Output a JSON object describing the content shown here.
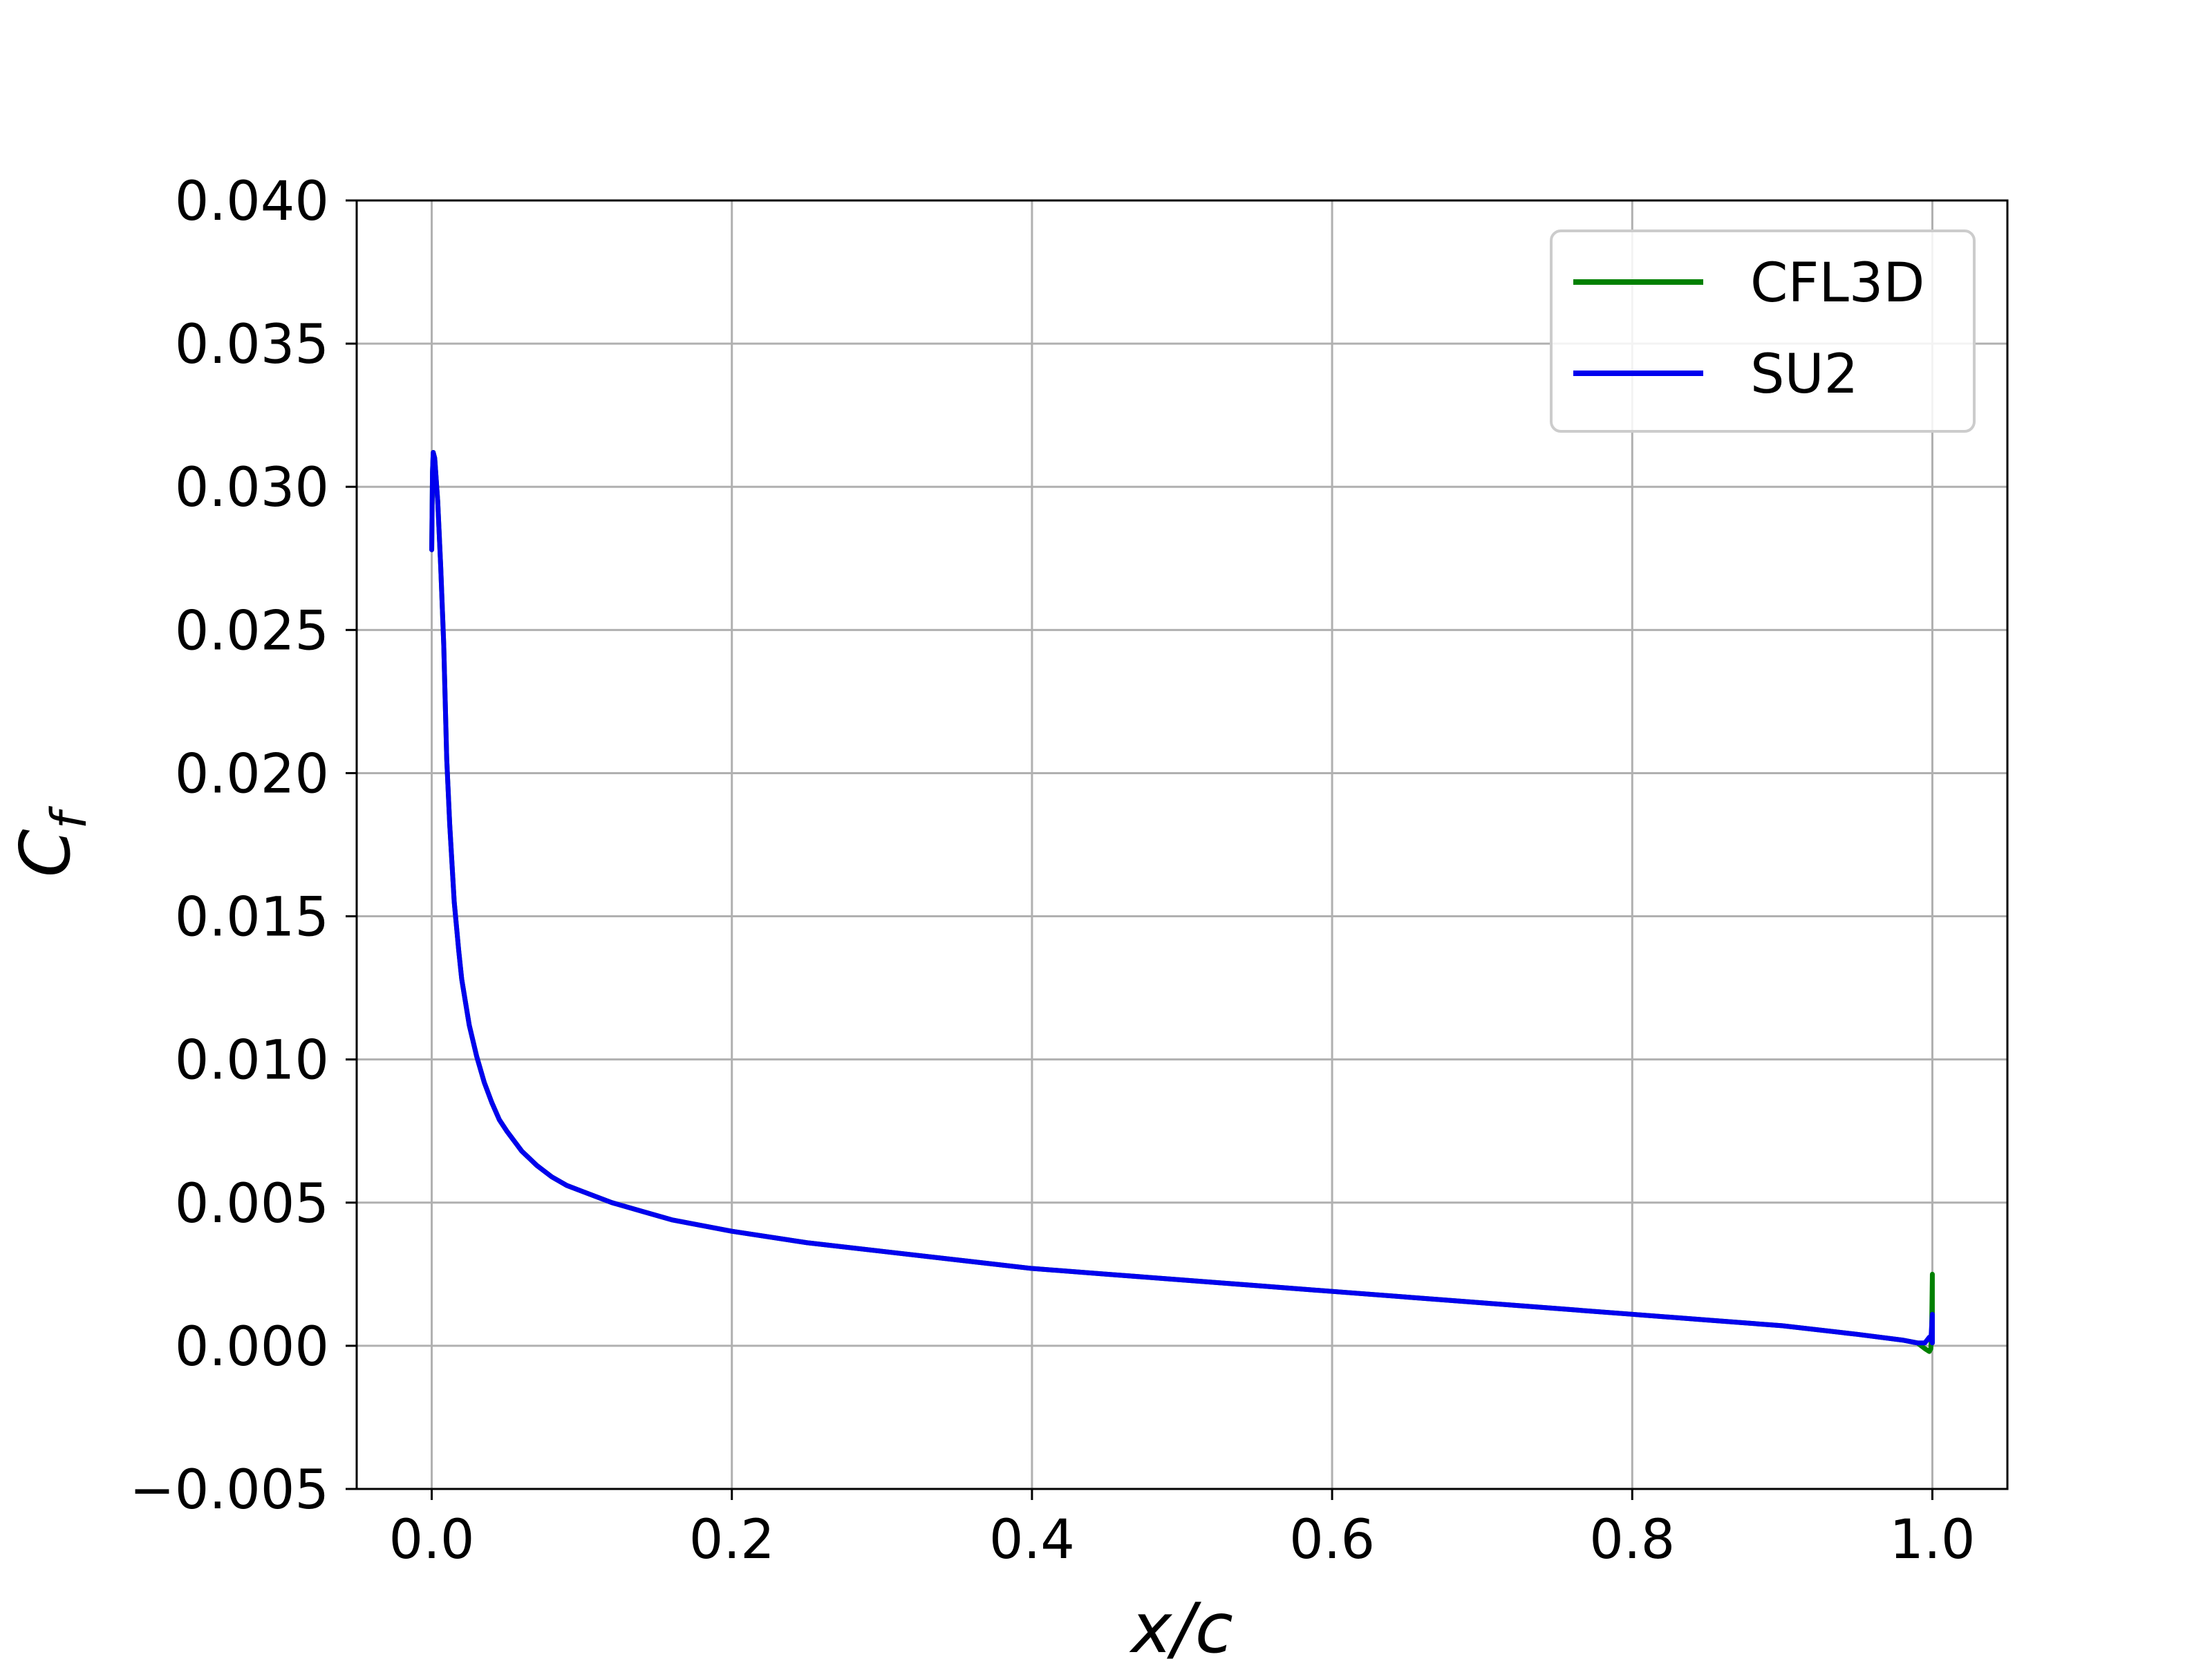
{
  "chart_data": {
    "type": "line",
    "title": "",
    "xlabel": "x/c",
    "ylabel": "C_f",
    "ylabel_main": "C",
    "ylabel_sub": "f",
    "xlim": [
      -0.05,
      1.05
    ],
    "ylim": [
      -0.005,
      0.04
    ],
    "xticks": [
      0.0,
      0.2,
      0.4,
      0.6,
      0.8,
      1.0
    ],
    "xtick_labels": [
      "0.0",
      "0.2",
      "0.4",
      "0.6",
      "0.8",
      "1.0"
    ],
    "yticks": [
      -0.005,
      0.0,
      0.005,
      0.01,
      0.015,
      0.02,
      0.025,
      0.03,
      0.035,
      0.04
    ],
    "ytick_labels": [
      "−0.005",
      "0.000",
      "0.005",
      "0.010",
      "0.015",
      "0.020",
      "0.025",
      "0.030",
      "0.035",
      "0.040"
    ],
    "grid": true,
    "legend_position": "top-right",
    "series": [
      {
        "name": "CFL3D",
        "color": "#008000",
        "x": [
          0.0,
          0.0005,
          0.001,
          0.002,
          0.004,
          0.006,
          0.008,
          0.01,
          0.012,
          0.015,
          0.018,
          0.02,
          0.025,
          0.03,
          0.035,
          0.04,
          0.045,
          0.05,
          0.06,
          0.07,
          0.08,
          0.09,
          0.1,
          0.12,
          0.14,
          0.16,
          0.18,
          0.2,
          0.25,
          0.3,
          0.35,
          0.4,
          0.45,
          0.5,
          0.55,
          0.6,
          0.65,
          0.7,
          0.75,
          0.8,
          0.85,
          0.9,
          0.95,
          0.98,
          0.99,
          0.995,
          0.998,
          0.999,
          0.9995,
          1.0,
          1.0
        ],
        "y": [
          0.0278,
          0.0305,
          0.0312,
          0.031,
          0.0295,
          0.0272,
          0.0245,
          0.0205,
          0.0182,
          0.0155,
          0.0138,
          0.0128,
          0.0112,
          0.0101,
          0.0092,
          0.0085,
          0.0079,
          0.0075,
          0.0068,
          0.0063,
          0.0059,
          0.0056,
          0.0054,
          0.005,
          0.0047,
          0.0044,
          0.0042,
          0.004,
          0.0036,
          0.0033,
          0.003,
          0.0027,
          0.0025,
          0.0023,
          0.0021,
          0.0019,
          0.0017,
          0.0015,
          0.0013,
          0.0011,
          0.0009,
          0.0007,
          0.0004,
          0.0002,
          0.0001,
          -0.0001,
          -0.0002,
          -0.0001,
          0.0005,
          0.0025,
          0.0001
        ]
      },
      {
        "name": "SU2",
        "color": "#0000ee",
        "x": [
          0.0,
          0.0005,
          0.001,
          0.002,
          0.004,
          0.006,
          0.008,
          0.01,
          0.012,
          0.015,
          0.018,
          0.02,
          0.025,
          0.03,
          0.035,
          0.04,
          0.045,
          0.05,
          0.06,
          0.07,
          0.08,
          0.09,
          0.1,
          0.12,
          0.14,
          0.16,
          0.18,
          0.2,
          0.25,
          0.3,
          0.35,
          0.4,
          0.45,
          0.5,
          0.55,
          0.6,
          0.65,
          0.7,
          0.75,
          0.8,
          0.85,
          0.9,
          0.95,
          0.98,
          0.99,
          0.995,
          0.998,
          0.999,
          1.0,
          1.0
        ],
        "y": [
          0.0278,
          0.0305,
          0.0312,
          0.031,
          0.0295,
          0.0272,
          0.0245,
          0.0205,
          0.0182,
          0.0155,
          0.0138,
          0.0128,
          0.0112,
          0.0101,
          0.0092,
          0.0085,
          0.0079,
          0.0075,
          0.0068,
          0.0063,
          0.0059,
          0.0056,
          0.0054,
          0.005,
          0.0047,
          0.0044,
          0.0042,
          0.004,
          0.0036,
          0.0033,
          0.003,
          0.0027,
          0.0025,
          0.0023,
          0.0021,
          0.0019,
          0.0017,
          0.0015,
          0.0013,
          0.0011,
          0.0009,
          0.0007,
          0.0004,
          0.0002,
          0.0001,
          0.0001,
          0.0003,
          0.0002,
          0.0011,
          0.0001
        ]
      }
    ]
  }
}
